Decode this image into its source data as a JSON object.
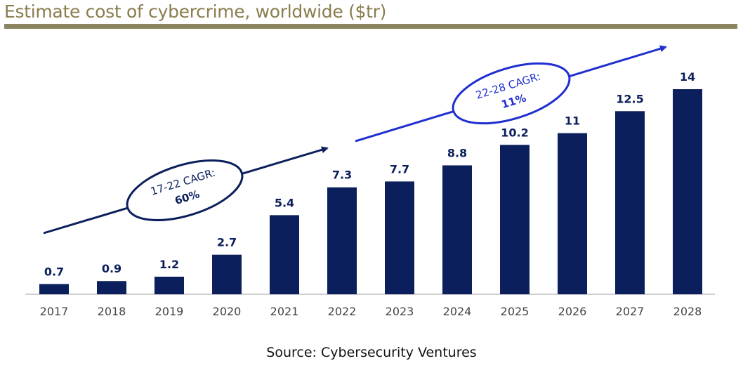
{
  "title": "Estimate cost of cybercrime, worldwide ($tr)",
  "source": "Source: Cybersecurity Ventures",
  "colors": {
    "bar": "#0b1f5c",
    "arrow1": "#0b1f5c",
    "arrow2": "#1f2fd0",
    "title": "#8a7d4e"
  },
  "chart_data": {
    "type": "bar",
    "categories": [
      "2017",
      "2018",
      "2019",
      "2020",
      "2021",
      "2022",
      "2023",
      "2024",
      "2025",
      "2026",
      "2027",
      "2028"
    ],
    "values": [
      0.7,
      0.9,
      1.2,
      2.7,
      5.4,
      7.3,
      7.7,
      8.8,
      10.2,
      11,
      12.5,
      14
    ],
    "value_labels": [
      "0.7",
      "0.9",
      "1.2",
      "2.7",
      "5.4",
      "7.3",
      "7.7",
      "8.8",
      "10.2",
      "11",
      "12.5",
      "14"
    ],
    "ylim": [
      0,
      14
    ],
    "grid": false,
    "annotations": [
      {
        "line1": "17-22 CAGR:",
        "line2": "60%"
      },
      {
        "line1": "22-28 CAGR:",
        "line2": "11%"
      }
    ]
  }
}
